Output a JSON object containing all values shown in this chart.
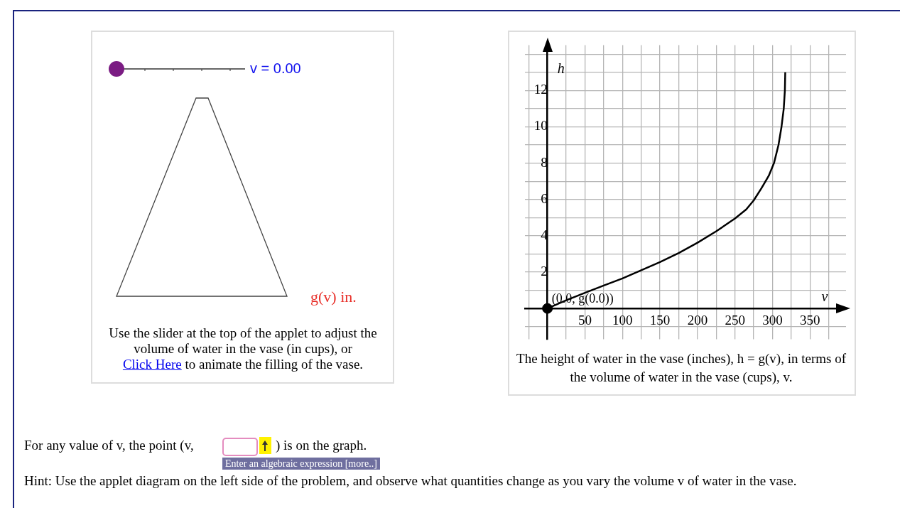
{
  "chart_data": {
    "type": "line",
    "xlabel": "v",
    "ylabel": "h",
    "series": [
      {
        "type": "line",
        "color": "#000000",
        "x": [
          0,
          25,
          50,
          75,
          100,
          125,
          150,
          175,
          200,
          225,
          250,
          265,
          275,
          285,
          295,
          302,
          308,
          312,
          315,
          316.5,
          317
        ],
        "values": [
          0,
          0.45,
          0.86,
          1.26,
          1.65,
          2.1,
          2.55,
          3.05,
          3.62,
          4.25,
          4.95,
          5.45,
          5.95,
          6.6,
          7.3,
          8.0,
          9.0,
          10.0,
          11.0,
          12.0,
          13.0
        ]
      },
      {
        "type": "scatter",
        "color": "#000000",
        "x": [
          0
        ],
        "values": [
          0
        ],
        "marker": "circle"
      }
    ],
    "xlim": [
      -30,
      398
    ],
    "ylim": [
      -1.7,
      14.5
    ],
    "xticks": [
      {
        "value": -25,
        "label": null
      },
      {
        "value": 0,
        "label": null
      },
      {
        "value": 25,
        "label": null
      },
      50,
      {
        "value": 75,
        "label": null
      },
      100,
      {
        "value": 125,
        "label": null
      },
      150,
      {
        "value": 175,
        "label": null
      },
      200,
      {
        "value": 225,
        "label": null
      },
      250,
      {
        "value": 275,
        "label": null
      },
      300,
      {
        "value": 325,
        "label": null
      },
      350,
      {
        "value": 375,
        "label": null
      }
    ],
    "yticks": [
      {
        "value": -1,
        "label": null
      },
      {
        "value": 0,
        "label": null
      },
      {
        "value": 1,
        "label": null
      },
      2,
      {
        "value": 3,
        "label": null
      },
      4,
      {
        "value": 5,
        "label": null
      },
      6,
      {
        "value": 7,
        "label": null
      },
      8,
      {
        "value": 9,
        "label": null
      },
      10,
      {
        "value": 11,
        "label": null
      },
      12,
      {
        "value": 13,
        "label": null
      },
      {
        "value": 14,
        "label": null
      }
    ],
    "grid": true,
    "legend": false,
    "annotations": [
      {
        "text": "(0.0, g(0.0))",
        "x": 0,
        "y": 0
      },
      "The height of water in the vase (inches), h = g(v), in terms of the volume of water in the vase (cups), v.",
      "v = 0.00",
      "g(v) in.",
      "Use the slider at the top of the applet to adjust the volume of water in the vase (in cups), or",
      "Click Here",
      "to animate the filling of the vase.",
      "For any value of v, the point (v,",
      ") is on the graph.",
      "Enter an algebraic expression [more..]",
      "Hint: Use the applet diagram on the left side of the problem, and observe what quantities change as you vary the volume v of water in the vase."
    ]
  }
}
